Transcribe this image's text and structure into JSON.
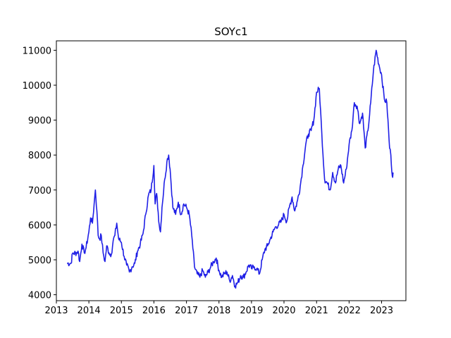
{
  "chart_data": {
    "type": "line",
    "title": "SOYc1",
    "xlabel": "",
    "ylabel": "",
    "x_axis": {
      "kind": "date",
      "ticks": [
        "2013",
        "2014",
        "2015",
        "2016",
        "2017",
        "2018",
        "2019",
        "2020",
        "2021",
        "2022",
        "2023"
      ],
      "range": [
        "2013-01-01",
        "2023-10-01"
      ]
    },
    "y_axis": {
      "ticks": [
        4000,
        5000,
        6000,
        7000,
        8000,
        9000,
        10000,
        11000
      ],
      "range": [
        3830,
        11270
      ]
    },
    "grid": false,
    "legend": "none",
    "series": [
      {
        "color": "#1f1fe6",
        "points": [
          [
            "2013-05-01",
            4900
          ],
          [
            "2013-06-15",
            4900
          ],
          [
            "2013-07-01",
            5180
          ],
          [
            "2013-08-15",
            5200
          ],
          [
            "2013-09-01",
            5250
          ],
          [
            "2013-09-20",
            4950
          ],
          [
            "2013-10-15",
            5450
          ],
          [
            "2013-11-10",
            5200
          ],
          [
            "2013-12-01",
            5350
          ],
          [
            "2014-01-01",
            5800
          ],
          [
            "2014-01-20",
            6200
          ],
          [
            "2014-02-10",
            6050
          ],
          [
            "2014-03-01",
            6600
          ],
          [
            "2014-03-15",
            7000
          ],
          [
            "2014-04-01",
            6400
          ],
          [
            "2014-04-15",
            5700
          ],
          [
            "2014-05-01",
            5600
          ],
          [
            "2014-05-20",
            5700
          ],
          [
            "2014-06-10",
            5200
          ],
          [
            "2014-07-01",
            4950
          ],
          [
            "2014-07-20",
            5400
          ],
          [
            "2014-08-15",
            5200
          ],
          [
            "2014-09-10",
            5150
          ],
          [
            "2014-10-01",
            5550
          ],
          [
            "2014-10-20",
            5700
          ],
          [
            "2014-11-10",
            6050
          ],
          [
            "2014-12-01",
            5600
          ],
          [
            "2015-01-01",
            5500
          ],
          [
            "2015-02-01",
            5100
          ],
          [
            "2015-03-01",
            4850
          ],
          [
            "2015-04-01",
            4650
          ],
          [
            "2015-05-01",
            4800
          ],
          [
            "2015-06-01",
            4900
          ],
          [
            "2015-07-01",
            5250
          ],
          [
            "2015-08-01",
            5450
          ],
          [
            "2015-09-01",
            5750
          ],
          [
            "2015-10-01",
            6300
          ],
          [
            "2015-11-01",
            6850
          ],
          [
            "2015-12-01",
            7000
          ],
          [
            "2016-01-01",
            7700
          ],
          [
            "2016-01-15",
            6600
          ],
          [
            "2016-02-01",
            6900
          ],
          [
            "2016-03-01",
            6000
          ],
          [
            "2016-03-15",
            5800
          ],
          [
            "2016-04-01",
            6500
          ],
          [
            "2016-05-01",
            7300
          ],
          [
            "2016-06-01",
            7900
          ],
          [
            "2016-06-15",
            8000
          ],
          [
            "2016-07-01",
            7600
          ],
          [
            "2016-08-01",
            6500
          ],
          [
            "2016-09-01",
            6300
          ],
          [
            "2016-10-01",
            6650
          ],
          [
            "2016-11-01",
            6300
          ],
          [
            "2016-12-01",
            6600
          ],
          [
            "2017-01-01",
            6500
          ],
          [
            "2017-02-01",
            6300
          ],
          [
            "2017-03-01",
            5700
          ],
          [
            "2017-04-01",
            4800
          ],
          [
            "2017-05-01",
            4600
          ],
          [
            "2017-06-01",
            4500
          ],
          [
            "2017-07-01",
            4700
          ],
          [
            "2017-08-01",
            4500
          ],
          [
            "2017-09-01",
            4650
          ],
          [
            "2017-10-01",
            4800
          ],
          [
            "2017-11-01",
            4950
          ],
          [
            "2017-12-01",
            5050
          ],
          [
            "2018-01-01",
            4700
          ],
          [
            "2018-02-01",
            4500
          ],
          [
            "2018-03-01",
            4600
          ],
          [
            "2018-04-01",
            4650
          ],
          [
            "2018-05-01",
            4400
          ],
          [
            "2018-06-01",
            4550
          ],
          [
            "2018-07-01",
            4250
          ],
          [
            "2018-08-01",
            4350
          ],
          [
            "2018-09-01",
            4550
          ],
          [
            "2018-10-01",
            4500
          ],
          [
            "2018-11-01",
            4650
          ],
          [
            "2018-12-01",
            4850
          ],
          [
            "2019-01-01",
            4750
          ],
          [
            "2019-02-01",
            4800
          ],
          [
            "2019-03-01",
            4750
          ],
          [
            "2019-04-01",
            4600
          ],
          [
            "2019-05-01",
            5000
          ],
          [
            "2019-06-01",
            5300
          ],
          [
            "2019-07-01",
            5400
          ],
          [
            "2019-08-01",
            5600
          ],
          [
            "2019-09-01",
            5800
          ],
          [
            "2019-10-01",
            5950
          ],
          [
            "2019-11-01",
            6000
          ],
          [
            "2019-12-01",
            6100
          ],
          [
            "2020-01-01",
            6300
          ],
          [
            "2020-02-01",
            6100
          ],
          [
            "2020-03-01",
            6500
          ],
          [
            "2020-04-01",
            6800
          ],
          [
            "2020-05-01",
            6400
          ],
          [
            "2020-06-01",
            6700
          ],
          [
            "2020-07-01",
            7100
          ],
          [
            "2020-08-01",
            7700
          ],
          [
            "2020-09-01",
            8300
          ],
          [
            "2020-10-01",
            8600
          ],
          [
            "2020-11-01",
            8700
          ],
          [
            "2020-12-01",
            9000
          ],
          [
            "2021-01-01",
            9800
          ],
          [
            "2021-02-01",
            9900
          ],
          [
            "2021-03-01",
            8600
          ],
          [
            "2021-04-01",
            7300
          ],
          [
            "2021-05-01",
            7200
          ],
          [
            "2021-06-01",
            7000
          ],
          [
            "2021-07-01",
            7500
          ],
          [
            "2021-08-01",
            7200
          ],
          [
            "2021-09-01",
            7600
          ],
          [
            "2021-10-01",
            7700
          ],
          [
            "2021-11-01",
            7200
          ],
          [
            "2021-12-01",
            7600
          ],
          [
            "2022-01-01",
            8300
          ],
          [
            "2022-02-01",
            8700
          ],
          [
            "2022-03-01",
            9500
          ],
          [
            "2022-04-01",
            9400
          ],
          [
            "2022-05-01",
            8900
          ],
          [
            "2022-06-01",
            9200
          ],
          [
            "2022-07-01",
            8200
          ],
          [
            "2022-08-01",
            8700
          ],
          [
            "2022-09-01",
            9500
          ],
          [
            "2022-10-01",
            10400
          ],
          [
            "2022-11-01",
            11000
          ],
          [
            "2022-12-01",
            10600
          ],
          [
            "2023-01-01",
            10300
          ],
          [
            "2023-02-01",
            9600
          ],
          [
            "2023-03-01",
            9500
          ],
          [
            "2023-04-01",
            8200
          ],
          [
            "2023-04-15",
            8000
          ],
          [
            "2023-05-01",
            7400
          ],
          [
            "2023-05-10",
            7500
          ]
        ]
      }
    ]
  }
}
